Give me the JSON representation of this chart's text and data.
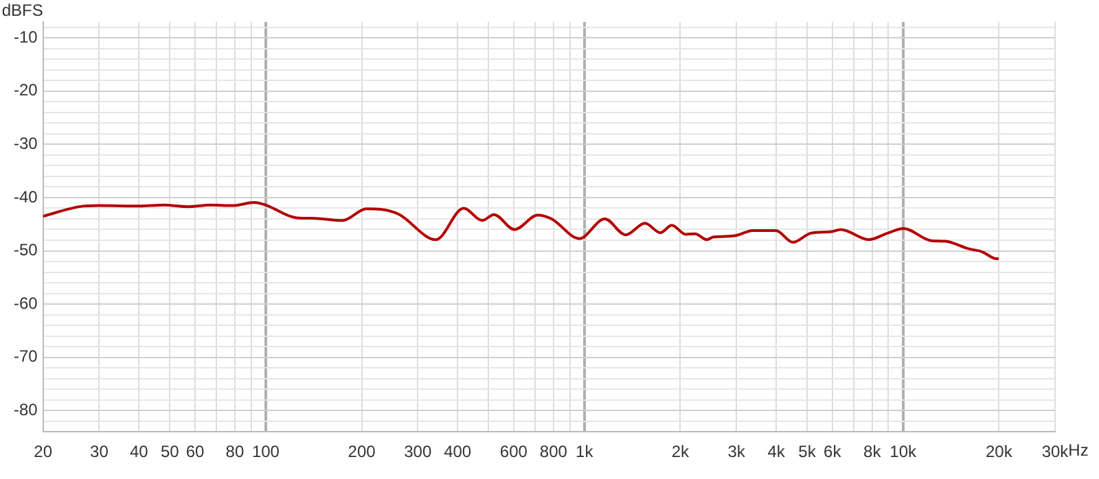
{
  "chart_data": {
    "type": "line",
    "ylabel": "dBFS",
    "log": "x",
    "grid": true,
    "legend": false,
    "marker": "none",
    "line_style": "solid",
    "xlim": [
      20,
      30000
    ],
    "xticks": [
      20,
      30,
      40,
      50,
      60,
      {
        "value": 70,
        "label": null
      },
      80,
      {
        "value": 90,
        "label": null
      },
      100,
      200,
      300,
      400,
      {
        "value": 500,
        "label": null
      },
      600,
      {
        "value": 700,
        "label": null
      },
      800,
      {
        "value": 900,
        "label": null
      },
      {
        "value": 1000,
        "label": "1k"
      },
      {
        "value": 2000,
        "label": "2k"
      },
      {
        "value": 3000,
        "label": "3k"
      },
      {
        "value": 4000,
        "label": "4k"
      },
      {
        "value": 5000,
        "label": "5k"
      },
      {
        "value": 6000,
        "label": "6k"
      },
      {
        "value": 7000,
        "label": null
      },
      {
        "value": 8000,
        "label": "8k"
      },
      {
        "value": 9000,
        "label": null
      },
      {
        "value": 10000,
        "label": "10k"
      },
      {
        "value": 20000,
        "label": "20k"
      },
      {
        "value": 30000,
        "label": "30k"
      }
    ],
    "xlabel": "Hz",
    "ylim": [
      -84,
      -7
    ],
    "yticks": [
      {
        "value": -8,
        "label": null
      },
      -10,
      {
        "value": -12,
        "label": null
      },
      {
        "value": -14,
        "label": null
      },
      {
        "value": -16,
        "label": null
      },
      {
        "value": -18,
        "label": null
      },
      -20,
      {
        "value": -22,
        "label": null
      },
      {
        "value": -24,
        "label": null
      },
      {
        "value": -26,
        "label": null
      },
      {
        "value": -28,
        "label": null
      },
      -30,
      {
        "value": -32,
        "label": null
      },
      {
        "value": -34,
        "label": null
      },
      {
        "value": -36,
        "label": null
      },
      {
        "value": -38,
        "label": null
      },
      -40,
      {
        "value": -42,
        "label": null
      },
      {
        "value": -44,
        "label": null
      },
      {
        "value": -46,
        "label": null
      },
      {
        "value": -48,
        "label": null
      },
      -50,
      {
        "value": -52,
        "label": null
      },
      {
        "value": -54,
        "label": null
      },
      {
        "value": -56,
        "label": null
      },
      {
        "value": -58,
        "label": null
      },
      -60,
      {
        "value": -62,
        "label": null
      },
      {
        "value": -64,
        "label": null
      },
      {
        "value": -66,
        "label": null
      },
      {
        "value": -68,
        "label": null
      },
      -70,
      {
        "value": -72,
        "label": null
      },
      {
        "value": -74,
        "label": null
      },
      {
        "value": -76,
        "label": null
      },
      {
        "value": -78,
        "label": null
      },
      -80,
      {
        "value": -82,
        "label": null
      }
    ],
    "series": [
      {
        "color": "#b30000",
        "x": [
          20,
          26,
          30,
          40,
          48,
          57,
          67,
          79,
          92,
          100,
          125,
          143,
          174,
          207,
          229,
          261,
          342,
          418,
          478,
          520,
          604,
          713,
          789,
          964,
          1159,
          1347,
          1550,
          1731,
          1881,
          2080,
          2226,
          2420,
          2542,
          2765,
          3004,
          3372,
          3990,
          4515,
          5130,
          5960,
          6377,
          7805,
          8930,
          10040,
          12270,
          13570,
          16020,
          17740,
          19300,
          19970
        ],
        "values": [
          -43.5,
          -41.7,
          -41.5,
          -41.6,
          -41.4,
          -41.7,
          -41.4,
          -41.5,
          -40.9,
          -41.4,
          -43.8,
          -43.9,
          -44.3,
          -42.1,
          -42.2,
          -43.1,
          -47.9,
          -42.0,
          -44.3,
          -43.2,
          -46.0,
          -43.3,
          -44.0,
          -47.7,
          -44.0,
          -47.0,
          -44.8,
          -46.6,
          -45.2,
          -46.9,
          -46.8,
          -47.9,
          -47.4,
          -47.3,
          -47.1,
          -46.2,
          -46.2,
          -48.4,
          -46.7,
          -46.4,
          -46.0,
          -47.9,
          -46.7,
          -45.8,
          -48.1,
          -48.2,
          -49.6,
          -50.2,
          -51.4,
          -51.5
        ]
      }
    ]
  }
}
